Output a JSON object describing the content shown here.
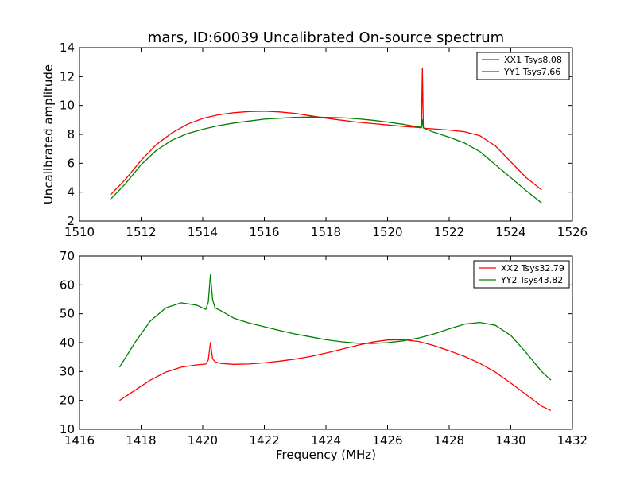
{
  "figure": {
    "title": "mars, ID:60039 Uncalibrated On-source spectrum",
    "ylabel": "Uncalibrated amplitude",
    "xlabel": "Frequency (MHz)"
  },
  "chart_data": [
    {
      "type": "line",
      "xlim": [
        1510,
        1526
      ],
      "ylim": [
        2,
        14
      ],
      "xticks": [
        1510,
        1512,
        1514,
        1516,
        1518,
        1520,
        1522,
        1524,
        1526
      ],
      "yticks": [
        2,
        4,
        6,
        8,
        10,
        12,
        14
      ],
      "legend_position": "top-right",
      "grid": false,
      "series": [
        {
          "name": "XX1 Tsys8.08",
          "color": "#ff0000",
          "x": [
            1511.0,
            1511.5,
            1512.0,
            1512.5,
            1513.0,
            1513.5,
            1514.0,
            1514.5,
            1515.0,
            1515.5,
            1516.0,
            1516.5,
            1517.0,
            1517.5,
            1518.0,
            1518.5,
            1519.0,
            1519.5,
            1520.0,
            1520.5,
            1521.0,
            1521.1,
            1521.13,
            1521.16,
            1521.2,
            1521.5,
            1522.0,
            1522.5,
            1523.0,
            1523.5,
            1524.0,
            1524.5,
            1525.0
          ],
          "y": [
            3.8,
            4.9,
            6.2,
            7.3,
            8.1,
            8.7,
            9.1,
            9.35,
            9.5,
            9.58,
            9.6,
            9.55,
            9.45,
            9.28,
            9.12,
            8.98,
            8.85,
            8.75,
            8.65,
            8.55,
            8.48,
            8.45,
            12.6,
            8.45,
            8.42,
            8.38,
            8.3,
            8.18,
            7.9,
            7.2,
            6.1,
            5.0,
            4.15
          ]
        },
        {
          "name": "YY1 Tsys7.66",
          "color": "#008000",
          "x": [
            1511.0,
            1511.5,
            1512.0,
            1512.5,
            1513.0,
            1513.5,
            1514.0,
            1514.5,
            1515.0,
            1515.5,
            1516.0,
            1516.5,
            1517.0,
            1517.5,
            1518.0,
            1518.5,
            1519.0,
            1519.5,
            1520.0,
            1520.5,
            1521.0,
            1521.1,
            1521.13,
            1521.16,
            1521.2,
            1521.5,
            1522.0,
            1522.5,
            1523.0,
            1523.5,
            1524.0,
            1524.5,
            1525.0
          ],
          "y": [
            3.5,
            4.6,
            5.9,
            6.9,
            7.6,
            8.05,
            8.35,
            8.6,
            8.78,
            8.92,
            9.05,
            9.12,
            9.18,
            9.2,
            9.18,
            9.15,
            9.08,
            8.98,
            8.85,
            8.7,
            8.52,
            8.5,
            9.0,
            8.45,
            8.4,
            8.15,
            7.8,
            7.4,
            6.8,
            5.9,
            5.0,
            4.1,
            3.25
          ]
        }
      ]
    },
    {
      "type": "line",
      "xlim": [
        1416,
        1432
      ],
      "ylim": [
        10,
        70
      ],
      "xticks": [
        1416,
        1418,
        1420,
        1422,
        1424,
        1426,
        1428,
        1430,
        1432
      ],
      "yticks": [
        10,
        20,
        30,
        40,
        50,
        60,
        70
      ],
      "legend_position": "top-right",
      "grid": false,
      "series": [
        {
          "name": "XX2 Tsys32.79",
          "color": "#ff0000",
          "x": [
            1417.3,
            1417.8,
            1418.3,
            1418.8,
            1419.3,
            1419.8,
            1420.1,
            1420.18,
            1420.25,
            1420.32,
            1420.4,
            1420.6,
            1421.0,
            1421.5,
            1422.0,
            1422.5,
            1423.0,
            1423.5,
            1424.0,
            1424.5,
            1425.0,
            1425.5,
            1426.0,
            1426.5,
            1427.0,
            1427.5,
            1428.0,
            1428.5,
            1429.0,
            1429.5,
            1430.0,
            1430.5,
            1431.0,
            1431.3
          ],
          "y": [
            20.0,
            23.5,
            27.0,
            29.8,
            31.5,
            32.3,
            32.6,
            34.0,
            40.0,
            34.5,
            33.3,
            32.8,
            32.5,
            32.6,
            33.0,
            33.6,
            34.3,
            35.2,
            36.4,
            37.7,
            39.0,
            40.2,
            40.9,
            41.0,
            40.4,
            39.0,
            37.2,
            35.2,
            32.8,
            29.8,
            26.0,
            22.0,
            18.0,
            16.5
          ]
        },
        {
          "name": "YY2 Tsys43.82",
          "color": "#008000",
          "x": [
            1417.3,
            1417.8,
            1418.3,
            1418.8,
            1419.3,
            1419.8,
            1420.1,
            1420.18,
            1420.25,
            1420.32,
            1420.4,
            1420.6,
            1421.0,
            1421.5,
            1422.0,
            1422.5,
            1423.0,
            1423.5,
            1424.0,
            1424.5,
            1425.0,
            1425.5,
            1426.0,
            1426.5,
            1427.0,
            1427.5,
            1428.0,
            1428.5,
            1429.0,
            1429.5,
            1430.0,
            1430.5,
            1431.0,
            1431.3
          ],
          "y": [
            31.5,
            40.0,
            47.5,
            52.0,
            53.8,
            53.0,
            51.5,
            54.0,
            63.5,
            55.0,
            52.0,
            51.0,
            48.5,
            46.8,
            45.5,
            44.2,
            43.0,
            42.0,
            41.0,
            40.3,
            39.8,
            39.7,
            40.0,
            40.6,
            41.6,
            43.0,
            44.8,
            46.4,
            47.0,
            46.0,
            42.5,
            36.5,
            30.0,
            27.0
          ]
        }
      ]
    }
  ]
}
